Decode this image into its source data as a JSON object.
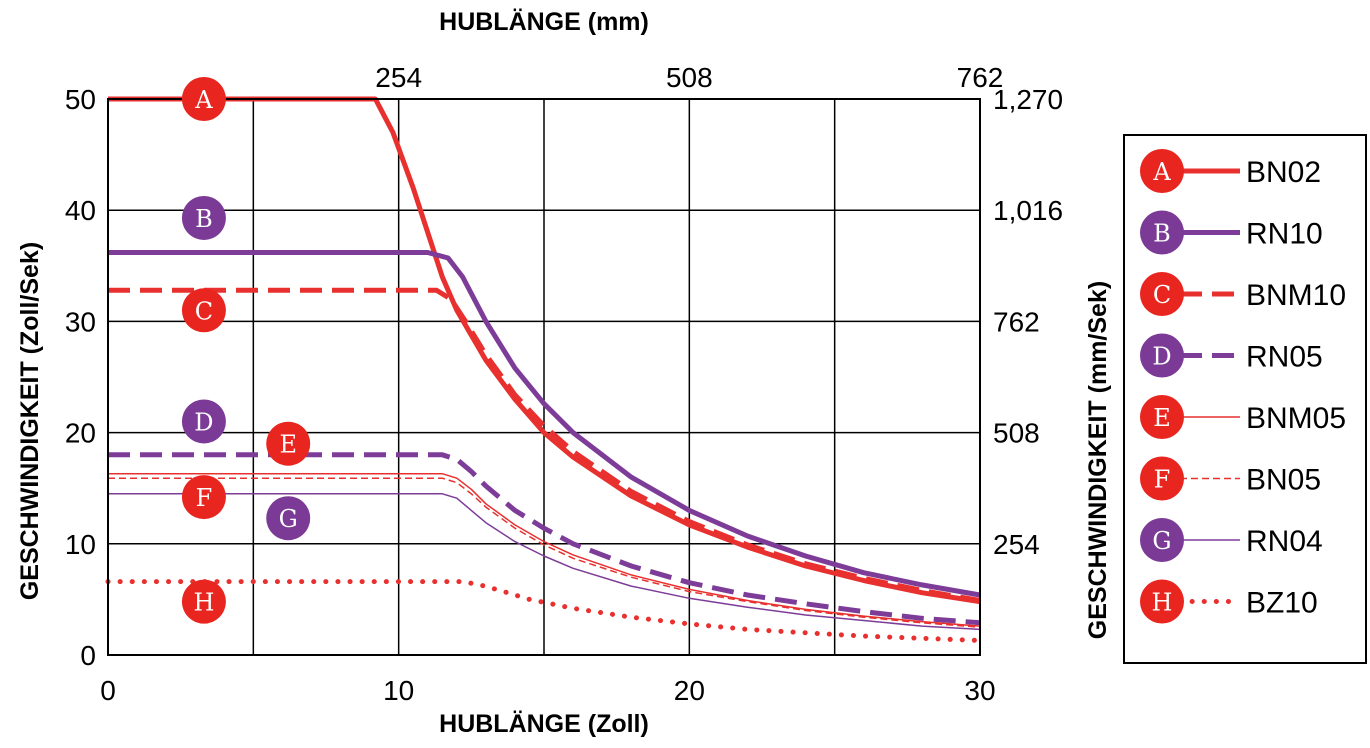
{
  "chart_data": {
    "type": "line",
    "title": "",
    "xlabel": "HUBLÄNGE  (Zoll)",
    "x2label": "HUBLÄNGE (mm)",
    "ylabel": "GESCHWINDIGKEIT (Zoll/Sek)",
    "y2label": "GESCHWINDIGKEIT (mm/Sek)",
    "xlim": [
      0,
      30
    ],
    "ylim": [
      0,
      50
    ],
    "x_ticks": [
      "0",
      "10",
      "20",
      "30"
    ],
    "x_tick_values": [
      0,
      10,
      20,
      30
    ],
    "x2_ticks": [
      "254",
      "508",
      "762"
    ],
    "x2_tick_values": [
      10,
      20,
      30
    ],
    "y_ticks": [
      "0",
      "10",
      "20",
      "30",
      "40",
      "50"
    ],
    "y_tick_values": [
      0,
      10,
      20,
      30,
      40,
      50
    ],
    "y2_ticks": [
      "254",
      "508",
      "762",
      "1,016",
      "1,270"
    ],
    "y2_tick_values": [
      10,
      20,
      30,
      40,
      50
    ],
    "grid": true,
    "legend_position": "right",
    "colors": {
      "red": "#e8302f",
      "purple": "#7d3c98",
      "badge_red": "#e8251f",
      "badge_purple": "#7b3a96"
    },
    "series": [
      {
        "letter": "A",
        "name": "BN02",
        "color": "#e8302f",
        "style": "solid",
        "width": 5,
        "badge": [
          3.3,
          50
        ],
        "badge_color": "red",
        "points": [
          [
            0,
            50
          ],
          [
            9.2,
            50
          ],
          [
            9.8,
            47
          ],
          [
            10.5,
            42
          ],
          [
            11,
            38
          ],
          [
            11.5,
            34
          ],
          [
            12,
            31
          ],
          [
            13,
            26.5
          ],
          [
            14,
            23
          ],
          [
            15,
            20
          ],
          [
            16,
            17.8
          ],
          [
            18,
            14.3
          ],
          [
            20,
            11.7
          ],
          [
            22,
            9.7
          ],
          [
            24,
            8
          ],
          [
            26,
            6.7
          ],
          [
            28,
            5.6
          ],
          [
            30,
            4.8
          ]
        ]
      },
      {
        "letter": "B",
        "name": "RN10",
        "color": "#7d3c98",
        "style": "solid",
        "width": 5,
        "badge": [
          3.3,
          39.3
        ],
        "badge_color": "purple",
        "points": [
          [
            0,
            36.2
          ],
          [
            11,
            36.2
          ],
          [
            11.7,
            35.7
          ],
          [
            12.2,
            34
          ],
          [
            13,
            30
          ],
          [
            14,
            25.8
          ],
          [
            15,
            22.6
          ],
          [
            16,
            20
          ],
          [
            18,
            16
          ],
          [
            20,
            13
          ],
          [
            22,
            10.7
          ],
          [
            24,
            8.9
          ],
          [
            26,
            7.4
          ],
          [
            28,
            6.3
          ],
          [
            30,
            5.4
          ]
        ]
      },
      {
        "letter": "C",
        "name": "BNM10",
        "color": "#e8302f",
        "style": "dashed",
        "width": 5,
        "badge": [
          3.3,
          31
        ],
        "badge_color": "red",
        "points": [
          [
            0,
            32.8
          ],
          [
            11.3,
            32.8
          ],
          [
            11.8,
            32
          ],
          [
            12.3,
            30
          ],
          [
            13,
            27
          ],
          [
            14,
            23.4
          ],
          [
            15,
            20.6
          ],
          [
            16,
            18.3
          ],
          [
            18,
            14.7
          ],
          [
            20,
            12
          ],
          [
            22,
            9.9
          ],
          [
            24,
            8.2
          ],
          [
            26,
            6.9
          ],
          [
            28,
            5.8
          ],
          [
            30,
            4.9
          ]
        ]
      },
      {
        "letter": "D",
        "name": "RN05",
        "color": "#7d3c98",
        "style": "dashed",
        "width": 5,
        "badge": [
          3.3,
          21
        ],
        "badge_color": "purple",
        "points": [
          [
            0,
            18
          ],
          [
            11.5,
            18
          ],
          [
            12,
            17.6
          ],
          [
            12.5,
            16.5
          ],
          [
            13,
            15.2
          ],
          [
            14,
            13
          ],
          [
            15,
            11.4
          ],
          [
            16,
            10
          ],
          [
            18,
            8
          ],
          [
            20,
            6.5
          ],
          [
            22,
            5.4
          ],
          [
            24,
            4.6
          ],
          [
            26,
            3.9
          ],
          [
            28,
            3.3
          ],
          [
            30,
            2.9
          ]
        ]
      },
      {
        "letter": "E",
        "name": "BNM05",
        "color": "#e8302f",
        "style": "solid",
        "width": 1.5,
        "badge": [
          6.2,
          19
        ],
        "badge_color": "red",
        "points": [
          [
            0,
            16.3
          ],
          [
            11.5,
            16.3
          ],
          [
            12,
            15.9
          ],
          [
            12.5,
            14.9
          ],
          [
            13,
            13.6
          ],
          [
            14,
            11.7
          ],
          [
            15,
            10.2
          ],
          [
            16,
            9
          ],
          [
            18,
            7.2
          ],
          [
            20,
            5.9
          ],
          [
            22,
            4.9
          ],
          [
            24,
            4.1
          ],
          [
            26,
            3.5
          ],
          [
            28,
            3
          ],
          [
            30,
            2.6
          ]
        ]
      },
      {
        "letter": "F",
        "name": "BN05",
        "color": "#e8302f",
        "style": "thin-dashed",
        "width": 1.5,
        "badge": [
          3.3,
          14.2
        ],
        "badge_color": "red",
        "points": [
          [
            0,
            15.9
          ],
          [
            11.5,
            15.9
          ],
          [
            12,
            15.5
          ],
          [
            12.5,
            14.5
          ],
          [
            13,
            13.3
          ],
          [
            14,
            11.4
          ],
          [
            15,
            9.9
          ],
          [
            16,
            8.7
          ],
          [
            18,
            7
          ],
          [
            20,
            5.7
          ],
          [
            22,
            4.8
          ],
          [
            24,
            4
          ],
          [
            26,
            3.4
          ],
          [
            28,
            2.9
          ],
          [
            30,
            2.5
          ]
        ]
      },
      {
        "letter": "G",
        "name": "RN04",
        "color": "#7d3c98",
        "style": "solid",
        "width": 1.5,
        "badge": [
          6.2,
          12.3
        ],
        "badge_color": "purple",
        "points": [
          [
            0,
            14.5
          ],
          [
            11.5,
            14.5
          ],
          [
            12,
            14.1
          ],
          [
            12.5,
            13
          ],
          [
            13,
            11.9
          ],
          [
            14,
            10.2
          ],
          [
            15,
            8.9
          ],
          [
            16,
            7.8
          ],
          [
            18,
            6.2
          ],
          [
            20,
            5.1
          ],
          [
            22,
            4.3
          ],
          [
            24,
            3.6
          ],
          [
            26,
            3.1
          ],
          [
            28,
            2.6
          ],
          [
            30,
            2.3
          ]
        ]
      },
      {
        "letter": "H",
        "name": "BZ10",
        "color": "#e8302f",
        "style": "dotted",
        "width": 5,
        "badge": [
          3.3,
          4.8
        ],
        "badge_color": "red",
        "points": [
          [
            0,
            6.6
          ],
          [
            12.2,
            6.6
          ],
          [
            12.8,
            6.3
          ],
          [
            13.5,
            5.8
          ],
          [
            14.5,
            5
          ],
          [
            16,
            4.2
          ],
          [
            18,
            3.4
          ],
          [
            20,
            2.8
          ],
          [
            22,
            2.3
          ],
          [
            24,
            2
          ],
          [
            26,
            1.7
          ],
          [
            28,
            1.5
          ],
          [
            30,
            1.3
          ]
        ]
      }
    ]
  }
}
